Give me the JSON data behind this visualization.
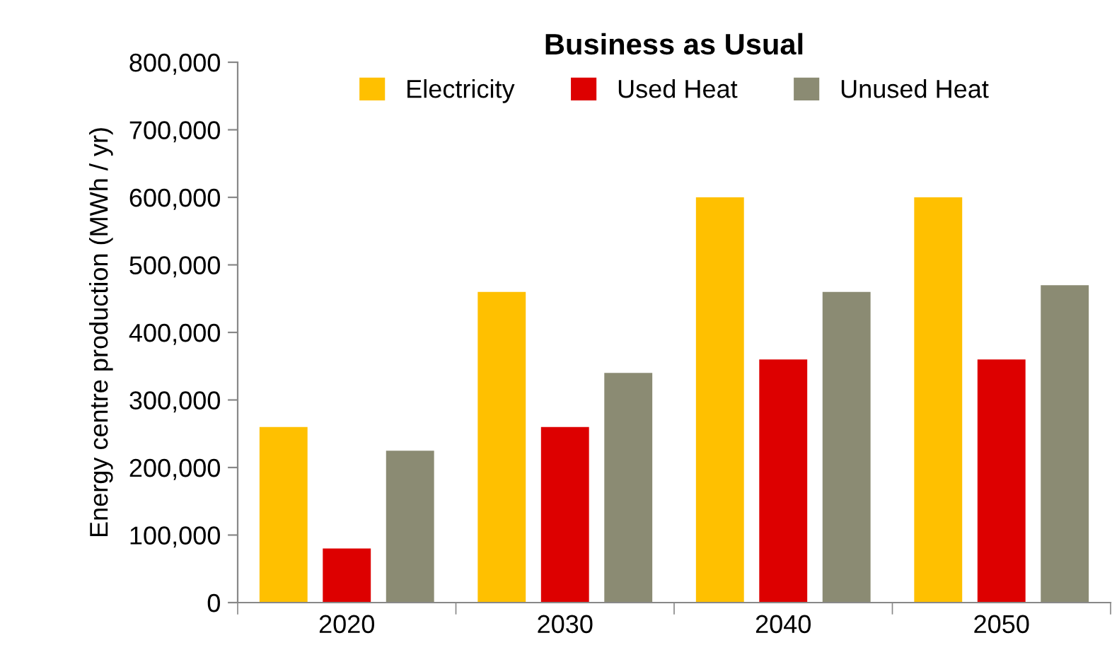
{
  "chart_data": {
    "type": "bar",
    "title": "Business as Usual",
    "ylabel": "Energy centre production (MWh / yr)",
    "categories": [
      "2020",
      "2030",
      "2040",
      "2050"
    ],
    "series": [
      {
        "name": "Electricity",
        "color": "#ffc000",
        "values": [
          260000,
          460000,
          600000,
          600000
        ]
      },
      {
        "name": "Used Heat",
        "color": "#dd0000",
        "values": [
          80000,
          260000,
          360000,
          360000
        ]
      },
      {
        "name": "Unused Heat",
        "color": "#8b8b73",
        "values": [
          225000,
          340000,
          460000,
          470000
        ]
      }
    ],
    "ylim": [
      0,
      800000
    ],
    "yticks": [
      {
        "value": 0,
        "label": "0"
      },
      {
        "value": 100000,
        "label": "100,000"
      },
      {
        "value": 200000,
        "label": "200,000"
      },
      {
        "value": 300000,
        "label": "300,000"
      },
      {
        "value": 400000,
        "label": "400,000"
      },
      {
        "value": 500000,
        "label": "500,000"
      },
      {
        "value": 600000,
        "label": "600,000"
      },
      {
        "value": 700000,
        "label": "700,000"
      },
      {
        "value": 800000,
        "label": "800,000"
      }
    ],
    "grid": false,
    "legend": "top"
  }
}
